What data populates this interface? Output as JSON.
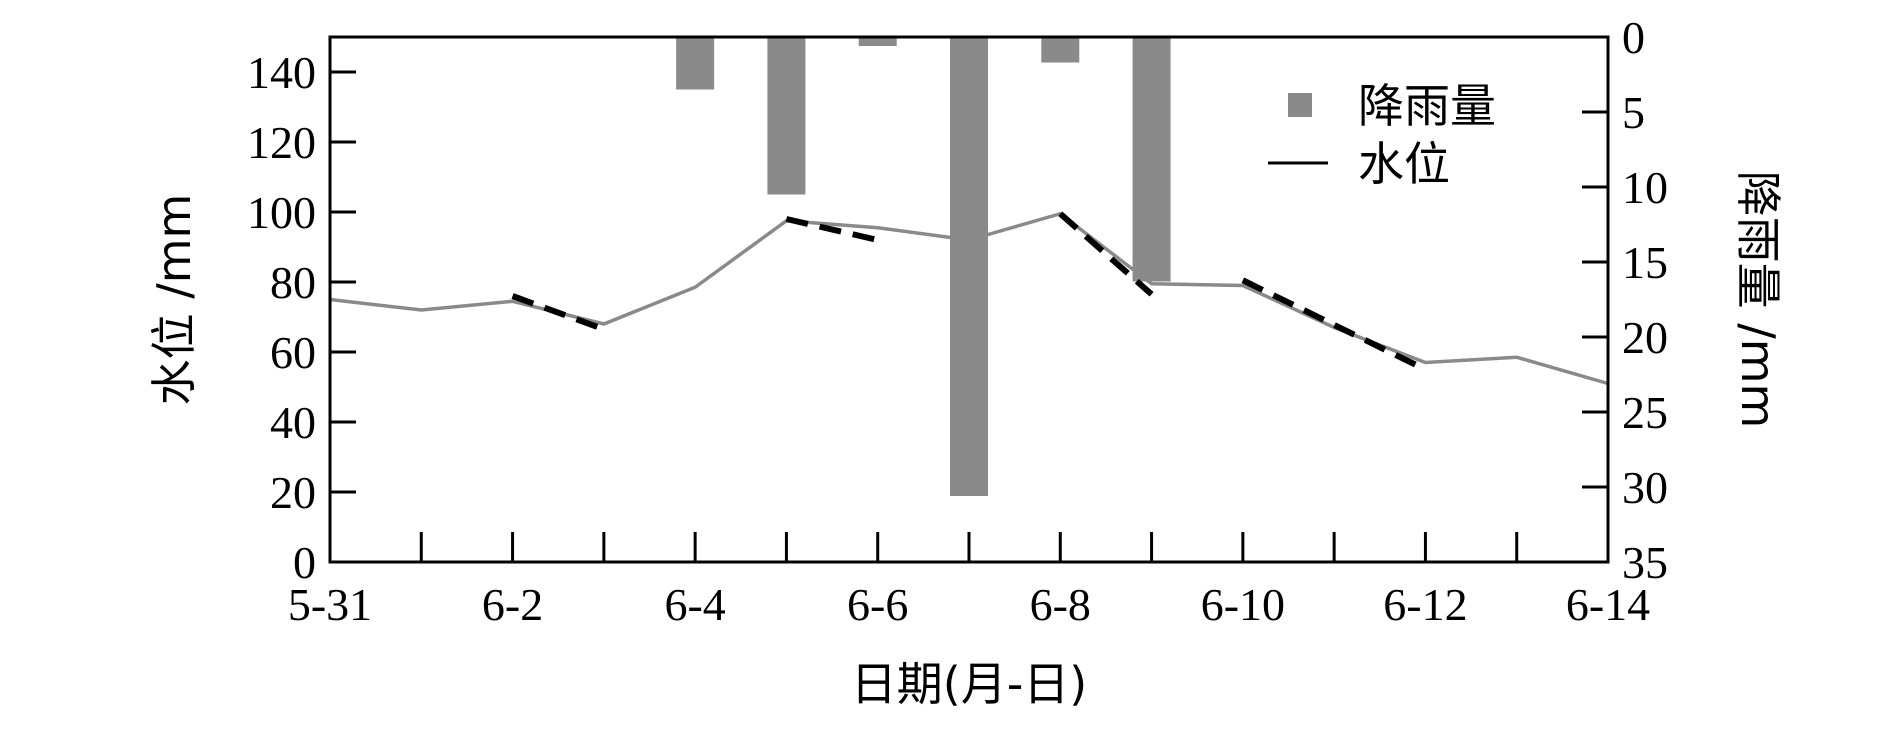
{
  "chart_data": {
    "type": "bar+line",
    "x_axis": {
      "label": "日期(月-日)",
      "ticks": [
        "5-31",
        "6-1",
        "6-2",
        "6-3",
        "6-4",
        "6-5",
        "6-6",
        "6-7",
        "6-8",
        "6-9",
        "6-10",
        "6-11",
        "6-12",
        "6-13",
        "6-14"
      ],
      "tick_labels": [
        "5-31",
        "6-2",
        "6-4",
        "6-6",
        "6-8",
        "6-10",
        "6-12",
        "6-14"
      ]
    },
    "y_left": {
      "label": "水位 /mm",
      "range": [
        0,
        150
      ],
      "ticks": [
        0,
        20,
        40,
        60,
        80,
        100,
        120,
        140
      ]
    },
    "y_right": {
      "label": "降雨量 /mm",
      "range": [
        0,
        35
      ],
      "inverted": true,
      "ticks": [
        0,
        5,
        10,
        15,
        20,
        25,
        30,
        35
      ]
    },
    "rainfall": {
      "name": "降雨量",
      "color": "#8a8a8a",
      "points": [
        {
          "date": "6-4",
          "value": 3.5
        },
        {
          "date": "6-5",
          "value": 10.5
        },
        {
          "date": "6-6",
          "value": 0.6
        },
        {
          "date": "6-7",
          "value": 30.6
        },
        {
          "date": "6-8",
          "value": 1.7
        },
        {
          "date": "6-9",
          "value": 16.3
        }
      ]
    },
    "water_level": {
      "name": "水位",
      "color": "#8a8a8a",
      "points": [
        {
          "date": "5-31",
          "value": 75
        },
        {
          "date": "6-1",
          "value": 72
        },
        {
          "date": "6-2",
          "value": 74.5
        },
        {
          "date": "6-3",
          "value": 68
        },
        {
          "date": "6-4",
          "value": 78.5
        },
        {
          "date": "6-5",
          "value": 97.5
        },
        {
          "date": "6-6",
          "value": 95.5
        },
        {
          "date": "6-7",
          "value": 92
        },
        {
          "date": "6-8",
          "value": 99.5
        },
        {
          "date": "6-9",
          "value": 79.5
        },
        {
          "date": "6-10",
          "value": 79
        },
        {
          "date": "6-11",
          "value": 67
        },
        {
          "date": "6-12",
          "value": 57
        },
        {
          "date": "6-13",
          "value": 58.5
        },
        {
          "date": "6-14",
          "value": 51
        }
      ]
    },
    "recession_segments": [
      {
        "from": {
          "date": "6-2",
          "value": 76
        },
        "to": {
          "date": "6-3",
          "value": 66.5
        }
      },
      {
        "from": {
          "date": "6-5",
          "value": 98
        },
        "to": {
          "date": "6-6",
          "value": 92
        }
      },
      {
        "from": {
          "date": "6-8",
          "value": 99.5
        },
        "to": {
          "date": "6-9",
          "value": 76.5
        }
      },
      {
        "from": {
          "date": "6-10",
          "value": 80.5
        },
        "to": {
          "date": "6-12",
          "value": 55
        }
      }
    ],
    "legend": {
      "position": "top-right",
      "items": [
        {
          "label": "降雨量",
          "kind": "square"
        },
        {
          "label": "水位",
          "kind": "line"
        }
      ]
    },
    "grid": false
  }
}
